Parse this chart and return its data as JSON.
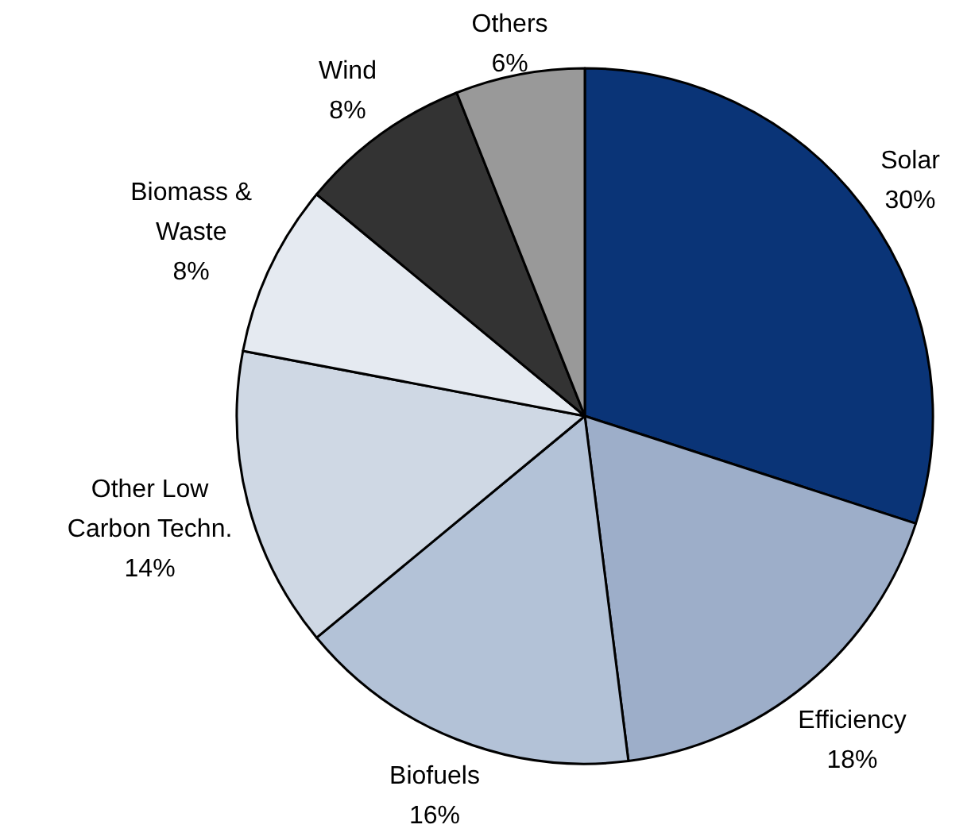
{
  "chart_data": {
    "type": "pie",
    "categories": [
      "Solar",
      "Efficiency",
      "Biofuels",
      "Other Low Carbon Techn.",
      "Biomass & Waste",
      "Wind",
      "Others"
    ],
    "values": [
      30,
      18,
      16,
      14,
      8,
      8,
      6
    ],
    "value_labels": [
      "30%",
      "18%",
      "16%",
      "14%",
      "8%",
      "8%",
      "6%"
    ],
    "colors": [
      "#0a3477",
      "#9daec9",
      "#b3c2d7",
      "#cfd8e4",
      "#e5eaf1",
      "#333333",
      "#999999"
    ]
  }
}
